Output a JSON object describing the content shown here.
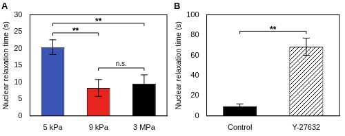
{
  "chart_data": [
    {
      "type": "bar",
      "title": "A",
      "y_label": "Nuclear relaxation time (s)",
      "categories": [
        "5 kPa",
        "9 kPa",
        "3 MPa"
      ],
      "values": [
        20.4,
        8.3,
        9.6
      ],
      "errors": [
        2.2,
        2.5,
        2.6
      ],
      "colors": [
        "#3a55b4",
        "#e8241f",
        "#000000"
      ],
      "ylim": [
        0,
        30
      ],
      "yticks": [
        0,
        5,
        10,
        15,
        20,
        25,
        30
      ],
      "grid": false,
      "annotations": [
        {
          "from": "9 kPa",
          "to": "3 MPa",
          "text": "n.s."
        },
        {
          "from": "5 kPa",
          "to": "9 kPa",
          "text": "**"
        },
        {
          "from": "5 kPa",
          "to": "3 MPa",
          "text": "**"
        }
      ]
    },
    {
      "type": "bar",
      "title": "B",
      "y_label": "Nuclear relaxation time (s)",
      "categories": [
        "Control",
        "Y-27632"
      ],
      "values": [
        9.7,
        68.5
      ],
      "errors": [
        2.2,
        8.5
      ],
      "colors": [
        "#000000",
        "#ffffff"
      ],
      "ylim": [
        0,
        100
      ],
      "yticks": [
        0,
        20,
        40,
        60,
        80,
        100
      ],
      "grid": false,
      "annotations": [
        {
          "from": "Control",
          "to": "Y-27632",
          "text": "**"
        }
      ]
    }
  ]
}
